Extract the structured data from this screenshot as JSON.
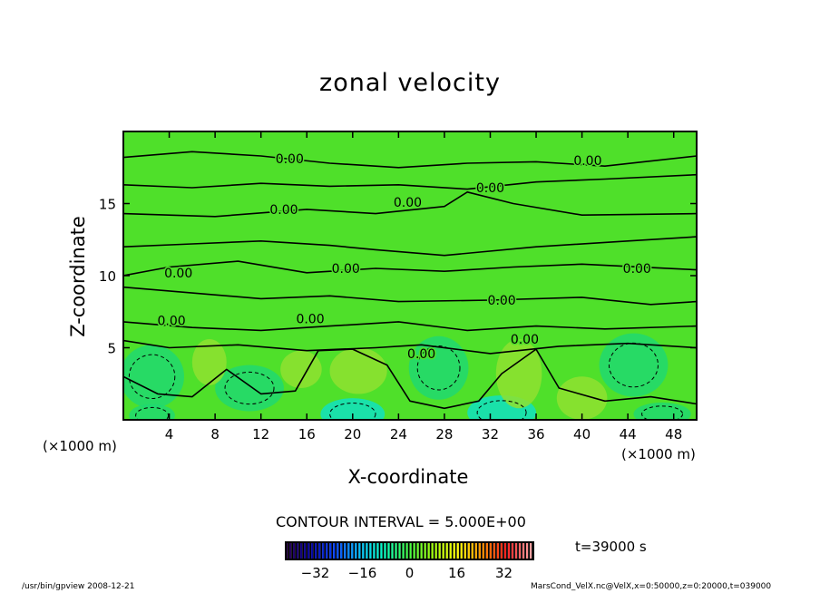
{
  "chart_data": {
    "type": "heatmap",
    "subtype": "filled contour",
    "title": "zonal velocity",
    "xlabel": "X-coordinate",
    "ylabel": "Z-coordinate",
    "x_unit": "(×1000 m)",
    "x_unit_left": "(×1000 m)",
    "xlim": [
      0,
      50
    ],
    "ylim": [
      0,
      20
    ],
    "xticks": [
      4,
      8,
      12,
      16,
      20,
      24,
      28,
      32,
      36,
      40,
      44,
      48
    ],
    "yticks": [
      5,
      10,
      15
    ],
    "contour_interval_text": "CONTOUR INTERVAL = 5.000E+00",
    "contour_labels": [
      {
        "text": "0.00",
        "x": 14.5,
        "z": 18.1
      },
      {
        "text": "0.00",
        "x": 40.5,
        "z": 18.0
      },
      {
        "text": "0.00",
        "x": 32.0,
        "z": 16.1
      },
      {
        "text": "0.00",
        "x": 24.8,
        "z": 15.1
      },
      {
        "text": "0.00",
        "x": 14.0,
        "z": 14.6
      },
      {
        "text": "0.00",
        "x": 4.8,
        "z": 10.2
      },
      {
        "text": "0.00",
        "x": 19.4,
        "z": 10.5
      },
      {
        "text": "0.00",
        "x": 44.8,
        "z": 10.5
      },
      {
        "text": "0.00",
        "x": 33.0,
        "z": 8.3
      },
      {
        "text": "0.00",
        "x": 4.2,
        "z": 6.9
      },
      {
        "text": "0.00",
        "x": 16.3,
        "z": 7.0
      },
      {
        "text": "0.00",
        "x": 35.0,
        "z": 5.6
      },
      {
        "text": "0.00",
        "x": 26.0,
        "z": 4.6
      }
    ],
    "colorbar": {
      "range": [
        -42,
        42
      ],
      "ticks": [
        -32,
        -16,
        0,
        16,
        32
      ],
      "colors": [
        "#2a0050",
        "#0000a0",
        "#0040ff",
        "#00c0ff",
        "#00ffc0",
        "#40ff40",
        "#a0ff00",
        "#ffff00",
        "#ff9000",
        "#ff2020",
        "#ffa0a0"
      ]
    },
    "field_colors": {
      "background": "#4fe02a",
      "positive": "#8fe030",
      "negative": "#20d870",
      "strong_negative": "#10e0c0"
    }
  },
  "annotations": {
    "time": "t=39000 s",
    "footer_left": "/usr/bin/gpview  2008-12-21",
    "footer_right": "MarsCond_VelX.nc@VelX,x=0:50000,z=0:20000,t=039000"
  }
}
